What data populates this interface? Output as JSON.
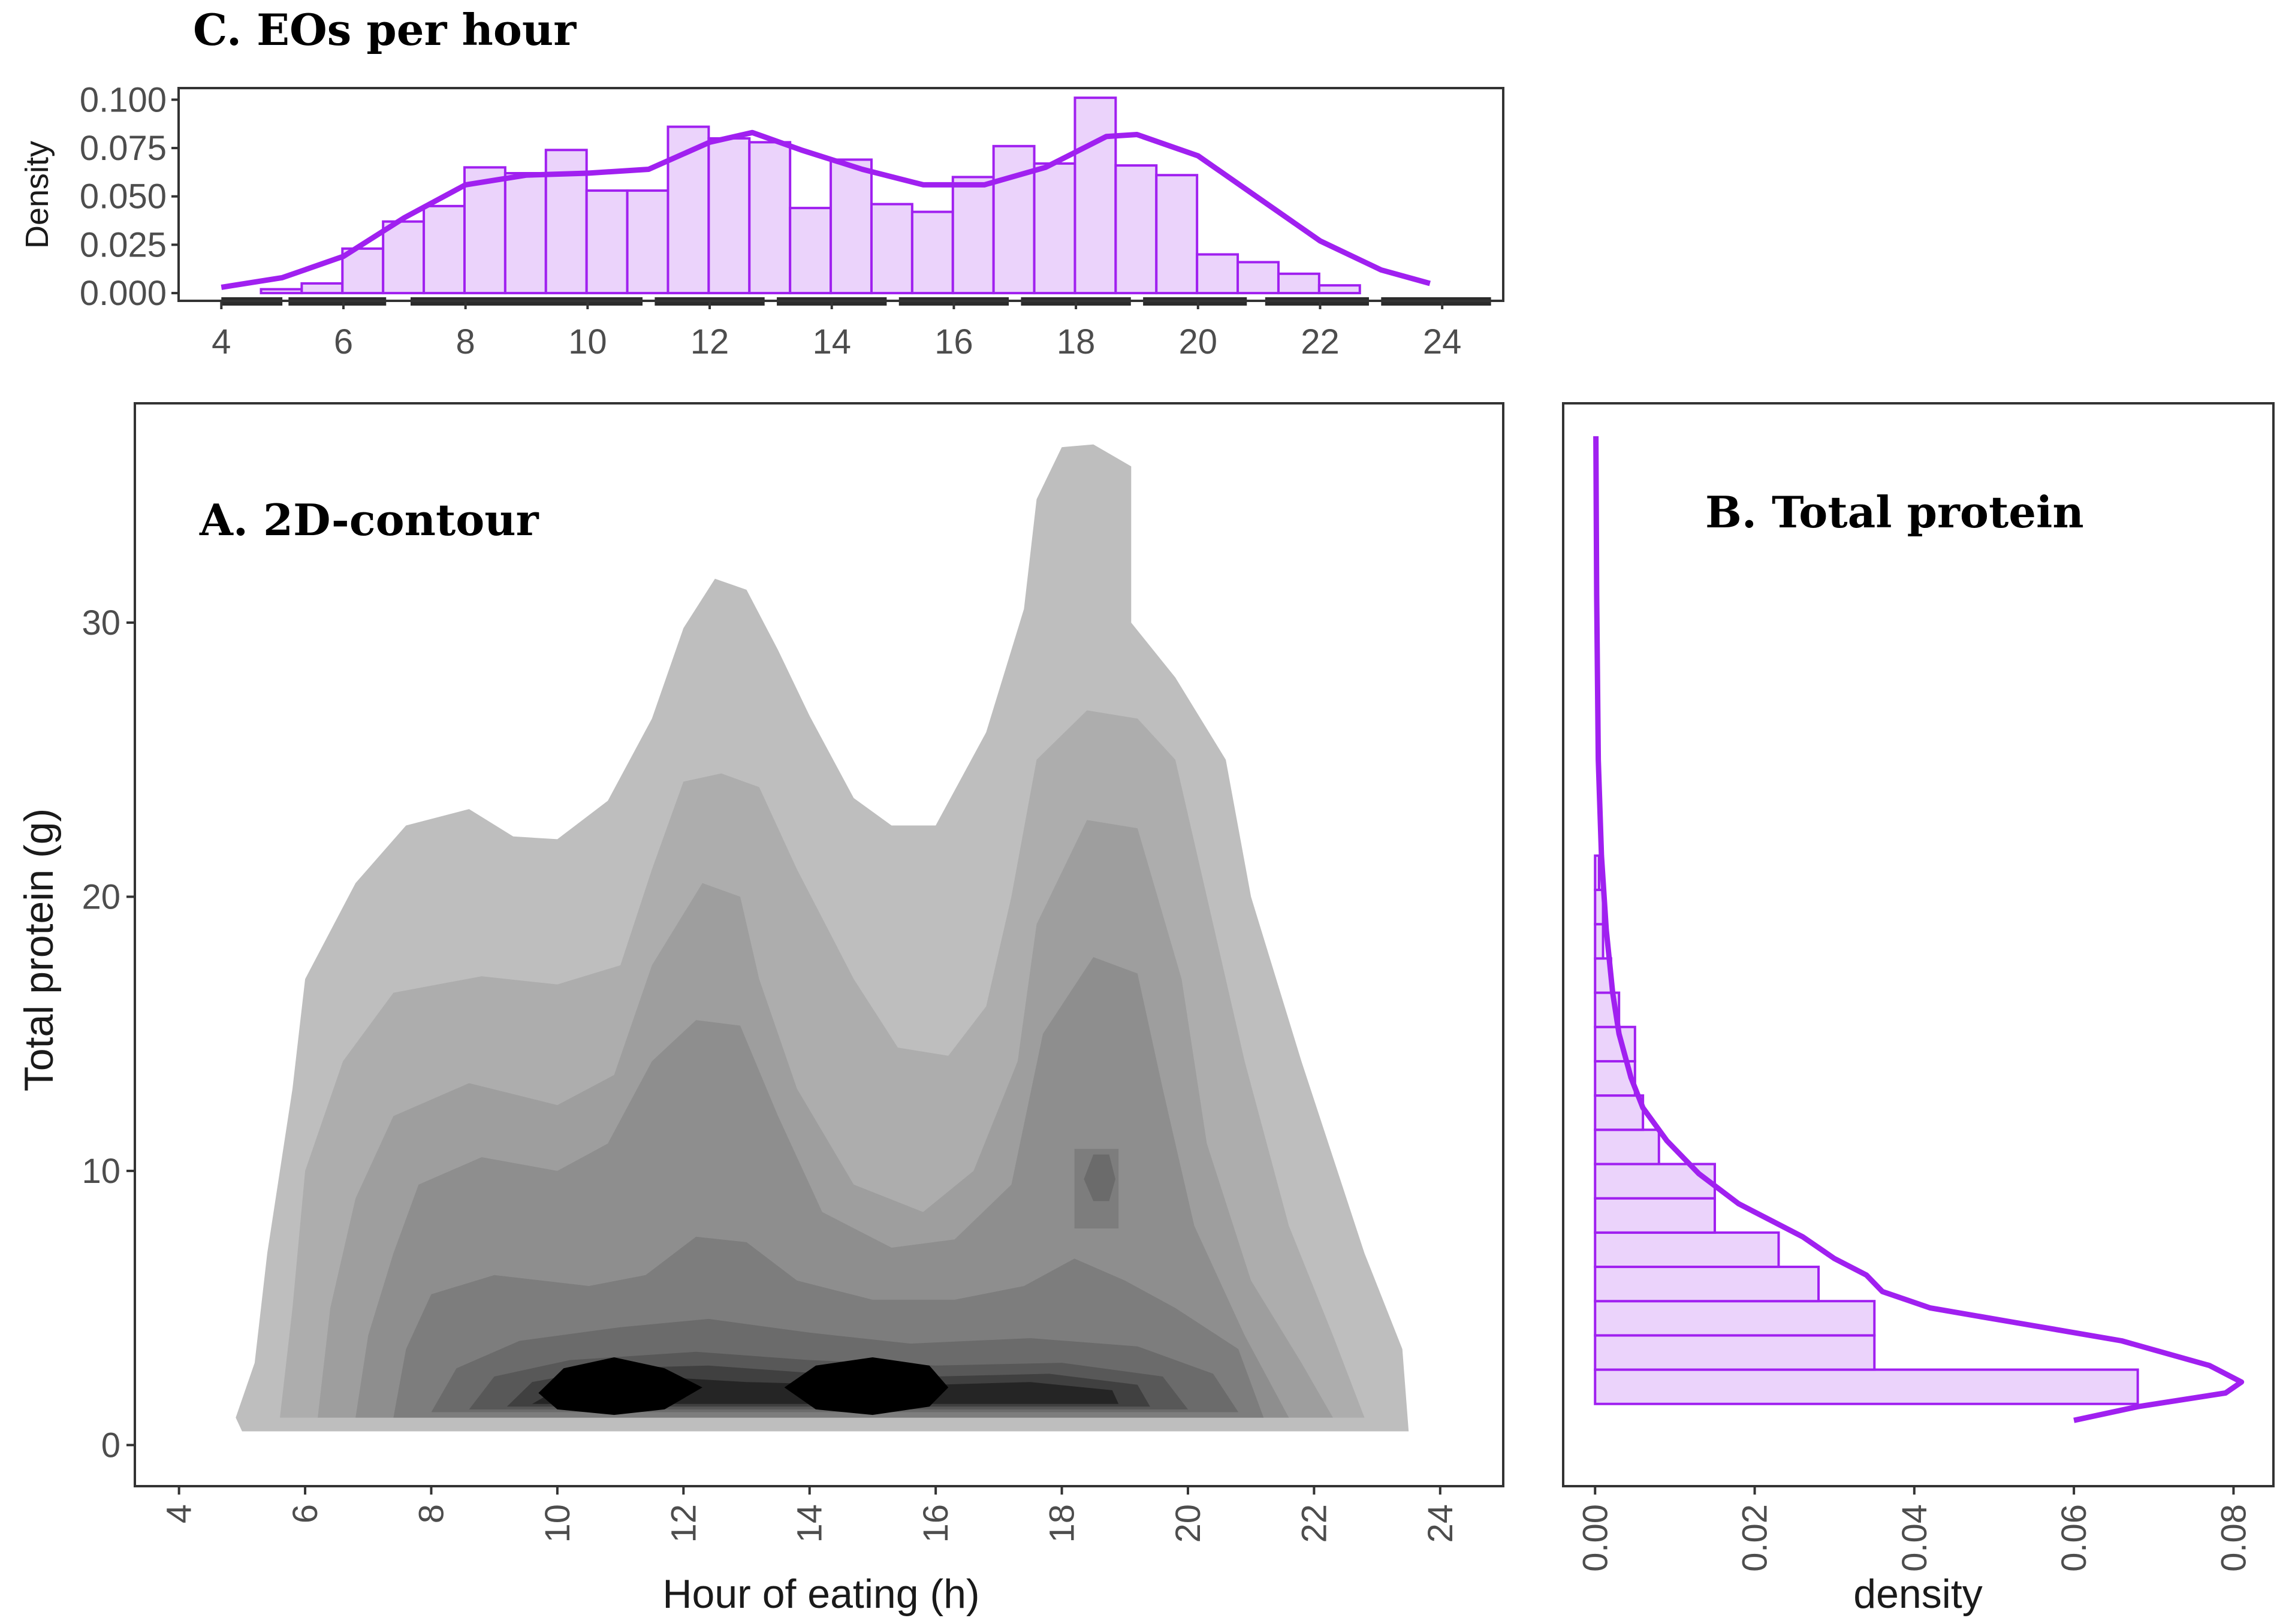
{
  "figure": {
    "panel_c_title": "C. EOs per hour",
    "panel_a_title": "A. 2D-contour",
    "panel_b_title": "B. Total protein"
  },
  "colors": {
    "accent": "#a020f0",
    "hist_fill": "#ebd3fb",
    "frame": "#333333"
  },
  "chart_data": [
    {
      "id": "C",
      "type": "bar",
      "title": "C. EOs per hour",
      "xlabel": "",
      "ylabel": "Density",
      "xlim": [
        3.3,
        25
      ],
      "ylim": [
        -0.004,
        0.106
      ],
      "xticks": [
        4,
        6,
        8,
        10,
        12,
        14,
        16,
        18,
        20,
        22,
        24
      ],
      "yticks": [
        0,
        0.025,
        0.05,
        0.075,
        0.1
      ],
      "ytick_labels": [
        "0.000",
        "0.025",
        "0.050",
        "0.075",
        "0.100"
      ],
      "bin_width": 0.6667,
      "bin_start": 4.65,
      "values": [
        0.002,
        0.005,
        0.023,
        0.037,
        0.045,
        0.065,
        0.062,
        0.074,
        0.053,
        0.053,
        0.086,
        0.08,
        0.078,
        0.044,
        0.069,
        0.046,
        0.042,
        0.06,
        0.076,
        0.067,
        0.101,
        0.066,
        0.061,
        0.02,
        0.016,
        0.01,
        0.004
      ],
      "density_curve": {
        "x": [
          4,
          5,
          6,
          7,
          8,
          9,
          10,
          11,
          12,
          12.7,
          13.5,
          14.5,
          15.5,
          16.5,
          17.5,
          18.5,
          19,
          20,
          21,
          22,
          23,
          23.8
        ],
        "y": [
          0.003,
          0.008,
          0.019,
          0.039,
          0.056,
          0.061,
          0.062,
          0.064,
          0.078,
          0.083,
          0.074,
          0.064,
          0.056,
          0.056,
          0.065,
          0.081,
          0.082,
          0.071,
          0.049,
          0.027,
          0.012,
          0.005
        ]
      },
      "rug_ranges": [
        [
          4,
          5
        ],
        [
          5.1,
          6.7
        ],
        [
          7.1,
          10.9
        ],
        [
          11.1,
          12.9
        ],
        [
          13.1,
          14.9
        ],
        [
          15.1,
          16.9
        ],
        [
          17.1,
          18.9
        ],
        [
          19.1,
          20.8
        ],
        [
          21.1,
          22.8
        ],
        [
          23,
          24.8
        ]
      ]
    },
    {
      "id": "A",
      "type": "contour",
      "title": "A. 2D-contour",
      "xlabel": "Hour of eating (h)",
      "ylabel": "Total protein (g)",
      "xlim": [
        3.3,
        25
      ],
      "ylim": [
        -1.5,
        38
      ],
      "xticks": [
        4,
        6,
        8,
        10,
        12,
        14,
        16,
        18,
        20,
        22,
        24
      ],
      "yticks": [
        0,
        10,
        20,
        30
      ],
      "levels": [
        {
          "level": 1,
          "gray": "#bebebe",
          "polygon": [
            [
              4.9,
              1
            ],
            [
              5.2,
              3
            ],
            [
              5.4,
              7
            ],
            [
              5.8,
              13
            ],
            [
              6,
              17
            ],
            [
              6.8,
              20.5
            ],
            [
              7.6,
              22.6
            ],
            [
              8.6,
              23.2
            ],
            [
              9.3,
              22.2
            ],
            [
              10,
              22.1
            ],
            [
              10.8,
              23.5
            ],
            [
              11.5,
              26.5
            ],
            [
              12,
              29.8
            ],
            [
              12.5,
              31.6
            ],
            [
              13,
              31.2
            ],
            [
              13.5,
              29
            ],
            [
              14,
              26.6
            ],
            [
              14.7,
              23.6
            ],
            [
              15.3,
              22.6
            ],
            [
              16,
              22.6
            ],
            [
              16.8,
              26
            ],
            [
              17.4,
              30.5
            ],
            [
              17.6,
              34.5
            ],
            [
              18,
              36.4
            ],
            [
              18.5,
              36.5
            ],
            [
              19.1,
              35.7
            ],
            [
              19.1,
              30
            ],
            [
              19.8,
              28
            ],
            [
              20.6,
              25
            ],
            [
              21,
              20
            ],
            [
              21.8,
              14
            ],
            [
              22.8,
              7
            ],
            [
              23.4,
              3.5
            ],
            [
              23.5,
              0.5
            ],
            [
              5,
              0.5
            ]
          ]
        },
        {
          "level": 2,
          "gray": "#adadad",
          "polygon": [
            [
              5.6,
              1
            ],
            [
              5.8,
              5
            ],
            [
              6,
              10
            ],
            [
              6.6,
              14
            ],
            [
              7.4,
              16.5
            ],
            [
              8.8,
              17.1
            ],
            [
              10,
              16.8
            ],
            [
              11,
              17.5
            ],
            [
              11.5,
              21
            ],
            [
              12,
              24.2
            ],
            [
              12.6,
              24.5
            ],
            [
              13.2,
              24
            ],
            [
              13.8,
              21
            ],
            [
              14.7,
              17
            ],
            [
              15.4,
              14.5
            ],
            [
              16.2,
              14.2
            ],
            [
              16.8,
              16
            ],
            [
              17.2,
              20
            ],
            [
              17.6,
              25
            ],
            [
              18.4,
              26.8
            ],
            [
              19.2,
              26.5
            ],
            [
              19.8,
              25
            ],
            [
              20.3,
              20
            ],
            [
              20.9,
              14
            ],
            [
              21.6,
              8
            ],
            [
              22.3,
              4
            ],
            [
              22.8,
              1
            ],
            [
              5.6,
              1
            ]
          ]
        },
        {
          "level": 3,
          "gray": "#9e9e9e",
          "polygon": [
            [
              6.2,
              1
            ],
            [
              6.4,
              5
            ],
            [
              6.8,
              9
            ],
            [
              7.4,
              12
            ],
            [
              8.6,
              13.2
            ],
            [
              10,
              12.4
            ],
            [
              10.9,
              13.5
            ],
            [
              11.5,
              17.5
            ],
            [
              12.3,
              20.5
            ],
            [
              12.9,
              20
            ],
            [
              13.2,
              17
            ],
            [
              13.8,
              13
            ],
            [
              14.7,
              9.5
            ],
            [
              15.8,
              8.5
            ],
            [
              16.6,
              10
            ],
            [
              17.3,
              14
            ],
            [
              17.6,
              19
            ],
            [
              18.4,
              22.8
            ],
            [
              19.2,
              22.5
            ],
            [
              19.9,
              17
            ],
            [
              20.3,
              11
            ],
            [
              21,
              6
            ],
            [
              21.8,
              3
            ],
            [
              22.3,
              1
            ],
            [
              6.2,
              1
            ]
          ]
        },
        {
          "level": 4,
          "gray": "#8e8e8e",
          "polygon": [
            [
              6.8,
              1
            ],
            [
              7,
              4
            ],
            [
              7.4,
              7
            ],
            [
              7.8,
              9.5
            ],
            [
              8.8,
              10.5
            ],
            [
              10,
              10
            ],
            [
              10.8,
              11
            ],
            [
              11.5,
              14
            ],
            [
              12.2,
              15.5
            ],
            [
              12.9,
              15.3
            ],
            [
              13.5,
              12
            ],
            [
              14.2,
              8.5
            ],
            [
              15.3,
              7.2
            ],
            [
              16.3,
              7.5
            ],
            [
              17.2,
              9.5
            ],
            [
              17.7,
              15
            ],
            [
              18.5,
              17.8
            ],
            [
              19.2,
              17.2
            ],
            [
              19.6,
              13
            ],
            [
              20.1,
              8
            ],
            [
              20.9,
              4
            ],
            [
              21.6,
              1
            ],
            [
              6.8,
              1
            ]
          ]
        },
        {
          "level": 5,
          "gray": "#7d7d7d",
          "polygon": [
            [
              7.4,
              1
            ],
            [
              7.6,
              3.5
            ],
            [
              8,
              5.5
            ],
            [
              9,
              6.2
            ],
            [
              10.5,
              5.8
            ],
            [
              11.4,
              6.2
            ],
            [
              12.2,
              7.6
            ],
            [
              13,
              7.4
            ],
            [
              13.8,
              6
            ],
            [
              15,
              5.3
            ],
            [
              16.3,
              5.3
            ],
            [
              17.4,
              5.8
            ],
            [
              18.2,
              6.8
            ],
            [
              19,
              6
            ],
            [
              19.8,
              5
            ],
            [
              20.8,
              3.5
            ],
            [
              21.2,
              1
            ],
            [
              7.4,
              1
            ]
          ]
        },
        {
          "level": 6,
          "gray": "#6b6b6b",
          "polygon": [
            [
              8,
              1.2
            ],
            [
              8.4,
              2.8
            ],
            [
              9.4,
              3.8
            ],
            [
              11,
              4.3
            ],
            [
              12.4,
              4.6
            ],
            [
              14,
              4.1
            ],
            [
              15.6,
              3.7
            ],
            [
              17.5,
              3.9
            ],
            [
              19.2,
              3.6
            ],
            [
              20.4,
              2.6
            ],
            [
              20.8,
              1.2
            ],
            [
              8,
              1.2
            ]
          ]
        },
        {
          "level": 7,
          "gray": "#585858",
          "polygon": [
            [
              8.6,
              1.3
            ],
            [
              9,
              2.5
            ],
            [
              10.2,
              3.1
            ],
            [
              12.2,
              3.4
            ],
            [
              14,
              3.1
            ],
            [
              16,
              2.9
            ],
            [
              18,
              3
            ],
            [
              19.6,
              2.5
            ],
            [
              20,
              1.3
            ],
            [
              8.6,
              1.3
            ]
          ]
        },
        {
          "level": 8,
          "gray": "#404040",
          "polygon": [
            [
              9.2,
              1.4
            ],
            [
              9.6,
              2.3
            ],
            [
              10.8,
              2.8
            ],
            [
              12.4,
              2.9
            ],
            [
              14.2,
              2.6
            ],
            [
              16,
              2.5
            ],
            [
              17.8,
              2.6
            ],
            [
              19.2,
              2.2
            ],
            [
              19.4,
              1.4
            ],
            [
              9.2,
              1.4
            ]
          ]
        },
        {
          "level": 9,
          "gray": "#252525",
          "polygon": [
            [
              9.6,
              1.5
            ],
            [
              10.2,
              2.3
            ],
            [
              11.5,
              2.5
            ],
            [
              13,
              2.3
            ],
            [
              14.5,
              2.2
            ],
            [
              16,
              2.2
            ],
            [
              17.5,
              2.3
            ],
            [
              18.8,
              2
            ],
            [
              18.9,
              1.5
            ],
            [
              9.6,
              1.5
            ]
          ]
        },
        {
          "level": 10,
          "gray": "#000000",
          "polygon": [
            [
              9.7,
              1.9
            ],
            [
              10.1,
              2.8
            ],
            [
              10.9,
              3.2
            ],
            [
              11.7,
              2.8
            ],
            [
              12.3,
              2.1
            ],
            [
              11.7,
              1.3
            ],
            [
              10.9,
              1.1
            ],
            [
              10,
              1.3
            ]
          ]
        },
        {
          "level": 11,
          "gray": "#000000",
          "polygon": [
            [
              13.6,
              2.1
            ],
            [
              14.1,
              2.9
            ],
            [
              15,
              3.2
            ],
            [
              15.9,
              2.9
            ],
            [
              16.2,
              2.1
            ],
            [
              15.9,
              1.4
            ],
            [
              15,
              1.1
            ],
            [
              14.1,
              1.3
            ]
          ]
        }
      ],
      "islands": [
        {
          "level": 5,
          "gray": "#7d7d7d",
          "polygon": [
            [
              18.2,
              7.9
            ],
            [
              18.9,
              7.9
            ],
            [
              18.9,
              10.8
            ],
            [
              18.2,
              10.8
            ]
          ]
        },
        {
          "level": 6,
          "gray": "#6b6b6b",
          "polygon": [
            [
              18.35,
              9.7
            ],
            [
              18.5,
              8.9
            ],
            [
              18.75,
              8.9
            ],
            [
              18.85,
              9.7
            ],
            [
              18.75,
              10.6
            ],
            [
              18.5,
              10.6
            ]
          ]
        }
      ]
    },
    {
      "id": "B",
      "type": "bar",
      "orientation": "horizontal",
      "title": "B. Total protein",
      "xlabel": "density",
      "ylabel": "",
      "xlim": [
        -0.004,
        0.085
      ],
      "ylim": [
        -1.5,
        38
      ],
      "xticks": [
        0,
        0.02,
        0.04,
        0.06,
        0.08
      ],
      "xtick_labels": [
        "0.00",
        "0.02",
        "0.04",
        "0.06",
        "0.08"
      ],
      "bin_start": 1.5,
      "bin_width": 1.25,
      "values": [
        0.068,
        0.035,
        0.035,
        0.028,
        0.023,
        0.015,
        0.015,
        0.008,
        0.006,
        0.005,
        0.005,
        0.003,
        0.002,
        0.001,
        0.001,
        0.0005
      ],
      "density_curve": {
        "x": [
          0.06,
          0.068,
          0.079,
          0.081,
          0.077,
          0.066,
          0.052,
          0.042,
          0.036,
          0.034,
          0.03,
          0.026,
          0.018,
          0.013,
          0.009,
          0.006,
          0.0045,
          0.003,
          0.0022,
          0.0014,
          0.0008,
          0.0004,
          0.0002,
          0.0001
        ],
        "y": [
          0.9,
          1.4,
          1.9,
          2.3,
          2.9,
          3.8,
          4.5,
          5.0,
          5.6,
          6.2,
          6.8,
          7.6,
          8.8,
          9.9,
          11.1,
          12.3,
          13.4,
          15.0,
          16.5,
          18.8,
          21.5,
          25.0,
          31.0,
          36.8
        ]
      }
    }
  ]
}
